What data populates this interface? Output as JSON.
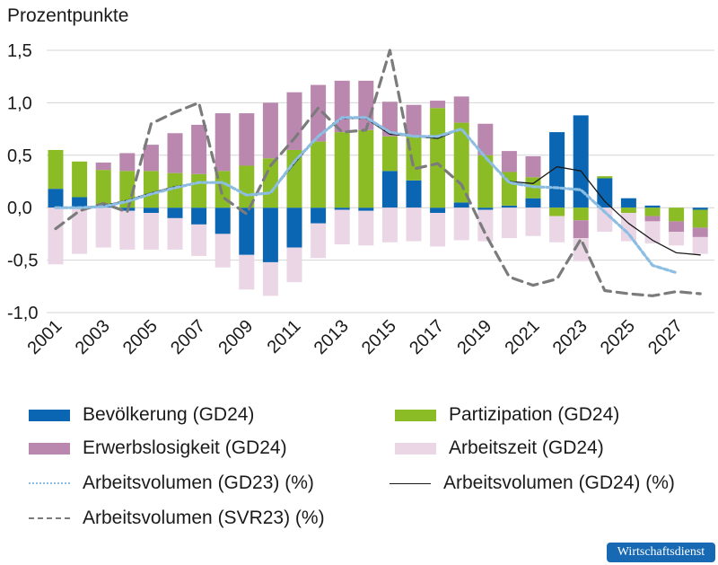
{
  "chart_data": {
    "type": "bar",
    "stacked": true,
    "ylabel": "Prozentpunkte",
    "ylim": [
      -1.0,
      1.5
    ],
    "yticks": [
      "-1,0",
      "-0,5",
      "0,0",
      "0,5",
      "1,0",
      "1,5"
    ],
    "ytick_values": [
      -1.0,
      -0.5,
      0.0,
      0.5,
      1.0,
      1.5
    ],
    "xtick_labels": [
      "2001",
      "2003",
      "2005",
      "2007",
      "2009",
      "2011",
      "2013",
      "2015",
      "2017",
      "2019",
      "2021",
      "2023",
      "2025",
      "2027"
    ],
    "x": [
      2001,
      2002,
      2003,
      2004,
      2005,
      2006,
      2007,
      2008,
      2009,
      2010,
      2011,
      2012,
      2013,
      2014,
      2015,
      2016,
      2017,
      2018,
      2019,
      2020,
      2021,
      2022,
      2023,
      2024,
      2025,
      2026,
      2027,
      2028
    ],
    "grid": true,
    "legend_position": "bottom",
    "series": [
      {
        "name": "Bevölkerung (GD24)",
        "kind": "bar",
        "color": "#0a66b2",
        "values": [
          0.18,
          0.1,
          0.03,
          -0.03,
          -0.05,
          -0.1,
          -0.16,
          -0.25,
          -0.45,
          -0.52,
          -0.38,
          -0.15,
          -0.02,
          -0.03,
          0.35,
          0.26,
          -0.05,
          0.05,
          -0.02,
          0.02,
          0.09,
          0.72,
          0.88,
          0.28,
          0.09,
          0.02,
          0.0,
          -0.02
        ]
      },
      {
        "name": "Partizipation (GD24)",
        "kind": "bar",
        "color": "#8cbc25",
        "values": [
          0.37,
          0.34,
          0.33,
          0.35,
          0.35,
          0.33,
          0.32,
          0.35,
          0.4,
          0.47,
          0.55,
          0.63,
          0.72,
          0.74,
          0.33,
          0.42,
          0.95,
          0.76,
          0.5,
          0.32,
          0.2,
          -0.08,
          -0.12,
          0.02,
          -0.05,
          -0.08,
          -0.13,
          -0.17
        ]
      },
      {
        "name": "Erwerbslosigkeit (GD24)",
        "kind": "bar",
        "color": "#ba88ae",
        "values": [
          0.0,
          0.0,
          0.07,
          0.17,
          0.25,
          0.38,
          0.47,
          0.55,
          0.5,
          0.53,
          0.55,
          0.54,
          0.49,
          0.47,
          0.33,
          0.3,
          0.07,
          0.25,
          0.3,
          0.2,
          0.2,
          0.0,
          -0.17,
          0.0,
          0.0,
          -0.05,
          -0.1,
          -0.09
        ]
      },
      {
        "name": "Arbeitszeit (GD24)",
        "kind": "bar",
        "color": "#ead6e5",
        "values": [
          -0.54,
          -0.44,
          -0.38,
          -0.37,
          -0.35,
          -0.3,
          -0.3,
          -0.32,
          -0.33,
          -0.32,
          -0.33,
          -0.33,
          -0.33,
          -0.33,
          -0.33,
          -0.32,
          -0.32,
          -0.31,
          -0.3,
          -0.29,
          -0.27,
          -0.25,
          -0.22,
          -0.23,
          -0.27,
          -0.21,
          -0.13,
          -0.16
        ]
      },
      {
        "name": "Arbeitsvolumen (GD23) (%)",
        "kind": "line",
        "color": "#8cbde2",
        "dash": "dotted",
        "values": [
          0.0,
          0.0,
          0.01,
          0.06,
          0.13,
          0.19,
          0.24,
          0.24,
          0.12,
          0.14,
          0.44,
          0.68,
          0.86,
          0.86,
          0.72,
          0.68,
          0.68,
          0.75,
          0.48,
          0.24,
          0.2,
          0.19,
          0.17,
          -0.04,
          -0.25,
          -0.55,
          -0.62,
          null
        ]
      },
      {
        "name": "Arbeitsvolumen (GD24) (%)",
        "kind": "line",
        "color": "#1a1a1a",
        "dash": "solid",
        "values": [
          0.0,
          0.0,
          0.02,
          0.07,
          0.14,
          0.2,
          0.24,
          0.24,
          0.12,
          0.14,
          0.42,
          0.68,
          0.85,
          0.85,
          0.7,
          0.68,
          0.66,
          0.75,
          0.48,
          0.25,
          0.23,
          0.39,
          0.35,
          0.06,
          -0.15,
          -0.31,
          -0.43,
          -0.45
        ]
      },
      {
        "name": "Arbeitsvolumen (SVR23) (%)",
        "kind": "line",
        "color": "#7b7b7b",
        "dash": "dashed",
        "values": [
          -0.2,
          -0.03,
          0.04,
          -0.04,
          0.8,
          0.91,
          1.0,
          0.1,
          -0.06,
          0.4,
          0.66,
          0.95,
          0.72,
          0.74,
          1.5,
          0.37,
          0.42,
          0.22,
          -0.25,
          -0.66,
          -0.74,
          -0.68,
          -0.3,
          -0.79,
          -0.82,
          -0.84,
          -0.8,
          -0.82
        ]
      }
    ]
  },
  "badge": {
    "text": "Wirtschaftsdienst"
  }
}
